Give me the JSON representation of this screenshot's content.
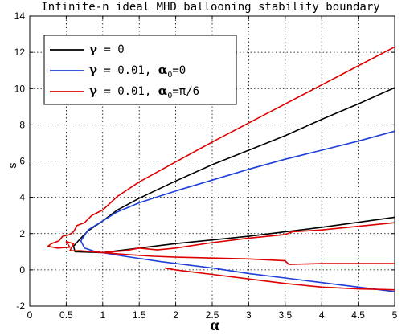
{
  "chart_data": {
    "type": "line",
    "title": "Infinite-n ideal MHD ballooning stability boundary",
    "xlabel": "α",
    "ylabel": "s",
    "xlim": [
      0,
      5
    ],
    "ylim": [
      -2,
      14
    ],
    "xticks": [
      "0",
      "0.5",
      "1",
      "1.5",
      "2",
      "2.5",
      "3",
      "3.5",
      "4",
      "4.5",
      "5"
    ],
    "yticks": [
      "-2",
      "0",
      "2",
      "4",
      "6",
      "8",
      "10",
      "12",
      "14"
    ],
    "grid": true,
    "legend_position": "top-left",
    "legend": [
      {
        "symbol": "γ",
        "text": " = 0"
      },
      {
        "symbol": "γ",
        "text": " = 0.01, ",
        "symbol2": "α",
        "sub": "0",
        "text2": "=0"
      },
      {
        "symbol": "γ",
        "text": " = 0.01, ",
        "symbol2": "α",
        "sub": "0",
        "text2": "=π/6"
      }
    ],
    "series": [
      {
        "color": "#000000",
        "lines": [
          [
            [
              5.0,
              10.05
            ],
            [
              4.5,
              9.15
            ],
            [
              4.0,
              8.3
            ],
            [
              3.5,
              7.4
            ],
            [
              3.0,
              6.6
            ],
            [
              2.5,
              5.8
            ],
            [
              2.0,
              4.9
            ],
            [
              1.5,
              3.95
            ],
            [
              1.2,
              3.3
            ],
            [
              1.0,
              2.7
            ],
            [
              0.8,
              2.15
            ],
            [
              0.7,
              1.75
            ],
            [
              0.6,
              1.3
            ],
            [
              0.62,
              1.0
            ],
            [
              1.0,
              0.95
            ],
            [
              1.5,
              1.2
            ],
            [
              2.0,
              1.45
            ],
            [
              3.0,
              1.85
            ],
            [
              4.0,
              2.35
            ],
            [
              5.0,
              2.9
            ]
          ]
        ]
      },
      {
        "color": "#1f3fd9",
        "lines": [
          [
            [
              5.0,
              7.65
            ],
            [
              4.5,
              7.1
            ],
            [
              4.0,
              6.6
            ],
            [
              3.5,
              6.1
            ],
            [
              3.0,
              5.55
            ],
            [
              2.5,
              4.95
            ],
            [
              2.0,
              4.35
            ],
            [
              1.5,
              3.7
            ],
            [
              1.2,
              3.2
            ],
            [
              1.0,
              2.7
            ],
            [
              0.8,
              2.2
            ],
            [
              0.7,
              1.6
            ],
            [
              0.75,
              1.2
            ],
            [
              0.9,
              1.0
            ],
            [
              1.0,
              0.95
            ],
            [
              1.3,
              0.75
            ],
            [
              1.8,
              0.45
            ],
            [
              2.5,
              0.1
            ],
            [
              3.0,
              -0.2
            ],
            [
              3.5,
              -0.45
            ],
            [
              4.0,
              -0.7
            ],
            [
              4.5,
              -0.95
            ],
            [
              5.0,
              -1.2
            ]
          ]
        ]
      },
      {
        "color": "#dd0000",
        "lines": [
          [
            [
              5.0,
              12.3
            ],
            [
              4.5,
              11.25
            ],
            [
              4.0,
              10.2
            ],
            [
              3.5,
              9.15
            ],
            [
              3.0,
              8.1
            ],
            [
              2.5,
              7.05
            ],
            [
              2.0,
              5.95
            ],
            [
              1.5,
              4.85
            ],
            [
              1.2,
              4.05
            ],
            [
              1.0,
              3.3
            ],
            [
              0.85,
              3.0
            ],
            [
              0.75,
              2.6
            ],
            [
              0.65,
              2.45
            ],
            [
              0.6,
              2.1
            ],
            [
              0.55,
              1.95
            ],
            [
              0.45,
              1.85
            ],
            [
              0.4,
              1.6
            ],
            [
              0.3,
              1.45
            ],
            [
              0.25,
              1.3
            ],
            [
              0.38,
              1.2
            ],
            [
              0.55,
              1.25
            ],
            [
              0.5,
              1.55
            ],
            [
              0.6,
              1.45
            ],
            [
              0.55,
              1.05
            ],
            [
              0.7,
              1.05
            ],
            [
              1.0,
              0.95
            ],
            [
              1.3,
              1.05
            ],
            [
              1.5,
              1.2
            ],
            [
              1.75,
              1.1
            ],
            [
              2.0,
              1.2
            ],
            [
              2.5,
              1.5
            ],
            [
              3.0,
              1.75
            ],
            [
              3.5,
              1.95
            ],
            [
              3.6,
              2.1
            ],
            [
              4.0,
              2.2
            ],
            [
              4.5,
              2.4
            ],
            [
              5.0,
              2.6
            ]
          ],
          [
            [
              1.0,
              0.95
            ],
            [
              1.3,
              0.85
            ],
            [
              1.7,
              0.75
            ],
            [
              2.0,
              0.7
            ],
            [
              2.5,
              0.65
            ],
            [
              3.0,
              0.6
            ],
            [
              3.5,
              0.5
            ],
            [
              3.55,
              0.3
            ],
            [
              4.0,
              0.35
            ],
            [
              4.5,
              0.35
            ],
            [
              5.0,
              0.35
            ]
          ],
          [
            [
              1.85,
              0.1
            ],
            [
              2.0,
              0.0
            ],
            [
              2.5,
              -0.25
            ],
            [
              3.0,
              -0.5
            ],
            [
              3.5,
              -0.75
            ],
            [
              4.0,
              -0.95
            ],
            [
              4.5,
              -1.05
            ],
            [
              5.0,
              -1.1
            ]
          ]
        ]
      }
    ]
  }
}
